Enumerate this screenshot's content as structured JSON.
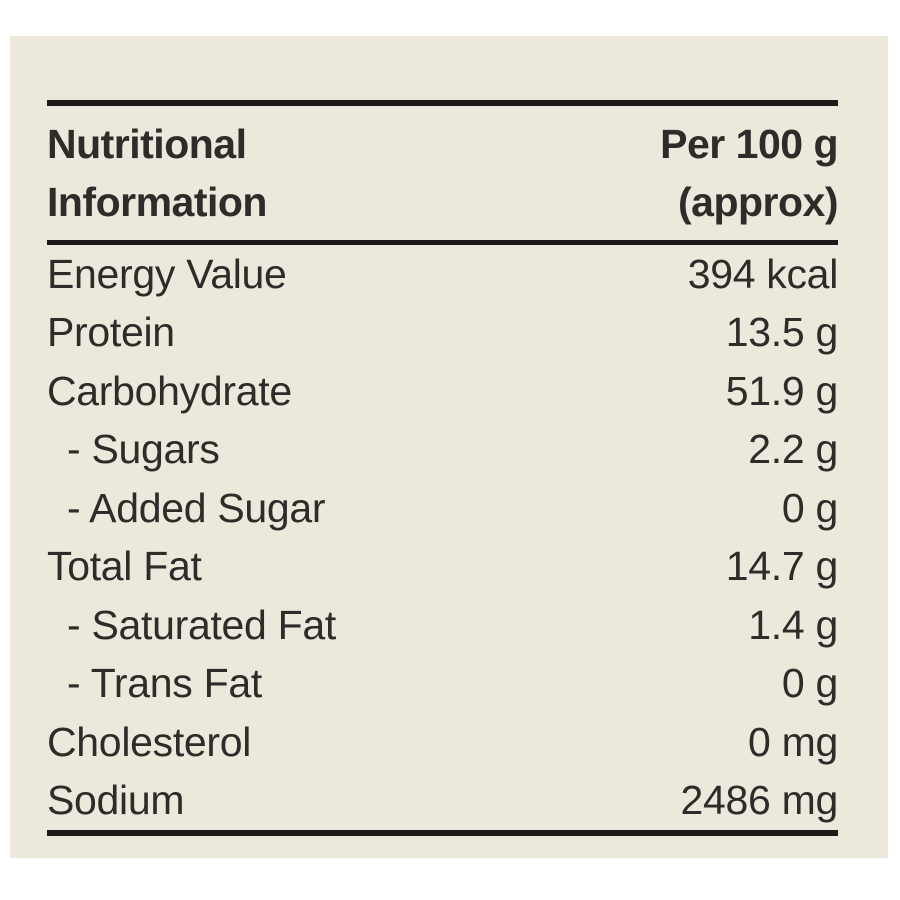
{
  "label": {
    "colors": {
      "page_bg": "#ffffff",
      "panel_bg": "#ece8dc",
      "text": "#2d2c29",
      "rule": "#1b1a18"
    },
    "header": {
      "title": "Nutritional Information",
      "column_line1": "Per 100 g",
      "column_line2": "(approx)"
    },
    "rows": [
      {
        "label": "Energy Value",
        "value": "394 kcal",
        "indent": false
      },
      {
        "label": "Protein",
        "value": "13.5 g",
        "indent": false
      },
      {
        "label": "Carbohydrate",
        "value": "51.9 g",
        "indent": false
      },
      {
        "label": "- Sugars",
        "value": "2.2 g",
        "indent": true
      },
      {
        "label": "- Added Sugar",
        "value": "0 g",
        "indent": true
      },
      {
        "label": "Total Fat",
        "value": "14.7 g",
        "indent": false
      },
      {
        "label": "- Saturated Fat",
        "value": "1.4 g",
        "indent": true
      },
      {
        "label": "- Trans Fat",
        "value": "0 g",
        "indent": true
      },
      {
        "label": "Cholesterol",
        "value": "0 mg",
        "indent": false
      },
      {
        "label": "Sodium",
        "value": "2486 mg",
        "indent": false
      }
    ]
  }
}
